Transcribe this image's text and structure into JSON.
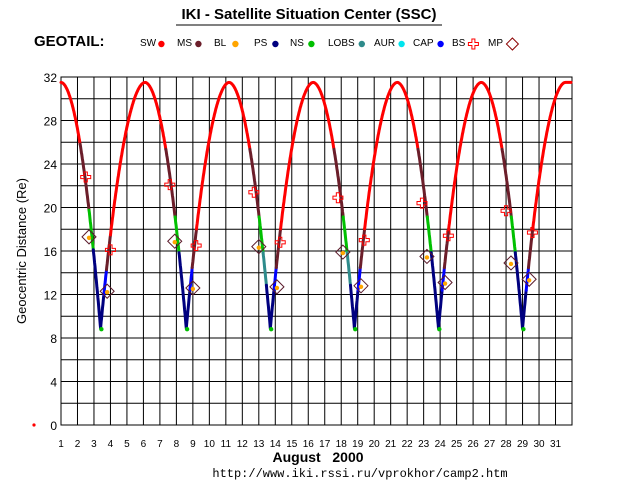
{
  "title": "IKI - Satellite Situation Center (SSC)",
  "satellite": "GEOTAIL:",
  "url": "http://www.iki.rssi.ru/vprokhor/camp2.htm",
  "chart_data": {
    "type": "line",
    "title": "IKI - Satellite Situation Center (SSC)",
    "xlabel": "August   2000",
    "ylabel": "Geocentric Distance (Re)",
    "xlim": [
      1,
      32
    ],
    "ylim": [
      0,
      32
    ],
    "x_ticks": [
      "1",
      "2",
      "3",
      "4",
      "5",
      "6",
      "7",
      "8",
      "9",
      "10",
      "11",
      "12",
      "13",
      "14",
      "15",
      "16",
      "17",
      "18",
      "19",
      "20",
      "21",
      "22",
      "23",
      "24",
      "25",
      "26",
      "27",
      "28",
      "29",
      "30",
      "31"
    ],
    "y_ticks": [
      "0",
      "4",
      "8",
      "12",
      "16",
      "20",
      "24",
      "28",
      "32"
    ],
    "grid": true,
    "legend": [
      {
        "label": "SW",
        "color": "#ff0000",
        "marker": "dot"
      },
      {
        "label": "MS",
        "color": "#6b1e2a",
        "marker": "dot"
      },
      {
        "label": "BL",
        "color": "#ffa500",
        "marker": "dot"
      },
      {
        "label": "PS",
        "color": "#00007f",
        "marker": "dot"
      },
      {
        "label": "NS",
        "color": "#00c000",
        "marker": "dot"
      },
      {
        "label": "LOBS",
        "color": "#2e8b8b",
        "marker": "dot"
      },
      {
        "label": "AUR",
        "color": "#00e5ee",
        "marker": "dot"
      },
      {
        "label": "CAP",
        "color": "#0000ff",
        "marker": "dot"
      },
      {
        "label": "BS",
        "color": "#ff0000",
        "marker": "cross"
      },
      {
        "label": "MP",
        "color": "#8b0000",
        "marker": "diamond"
      }
    ],
    "orbit": {
      "apogee_days": [
        1.0,
        6.1,
        11.2,
        16.3,
        21.4,
        26.5,
        31.6
      ],
      "perigee_days": [
        3.4,
        8.6,
        13.7,
        18.8,
        23.9,
        29.0
      ],
      "apogee_distance": 31.5,
      "perigee_distance": 8.9
    },
    "bow_shock_crossings": [
      {
        "x": 2.5,
        "y": 22.8
      },
      {
        "x": 4.0,
        "y": 16.1
      },
      {
        "x": 7.6,
        "y": 22.1
      },
      {
        "x": 9.2,
        "y": 16.5
      },
      {
        "x": 12.7,
        "y": 21.4
      },
      {
        "x": 14.3,
        "y": 16.8
      },
      {
        "x": 17.8,
        "y": 20.9
      },
      {
        "x": 19.4,
        "y": 17.0
      },
      {
        "x": 22.9,
        "y": 20.4
      },
      {
        "x": 24.5,
        "y": 17.4
      },
      {
        "x": 28.0,
        "y": 19.7
      },
      {
        "x": 29.6,
        "y": 17.7
      }
    ],
    "magnetopause_crossings": [
      {
        "x": 2.7,
        "y": 17.3
      },
      {
        "x": 3.8,
        "y": 12.3
      },
      {
        "x": 7.9,
        "y": 16.9
      },
      {
        "x": 9.0,
        "y": 12.6
      },
      {
        "x": 13.0,
        "y": 16.4
      },
      {
        "x": 14.1,
        "y": 12.7
      },
      {
        "x": 18.1,
        "y": 15.9
      },
      {
        "x": 19.2,
        "y": 12.8
      },
      {
        "x": 23.2,
        "y": 15.5
      },
      {
        "x": 24.3,
        "y": 13.1
      },
      {
        "x": 28.3,
        "y": 14.9
      },
      {
        "x": 29.4,
        "y": 13.4
      }
    ]
  }
}
